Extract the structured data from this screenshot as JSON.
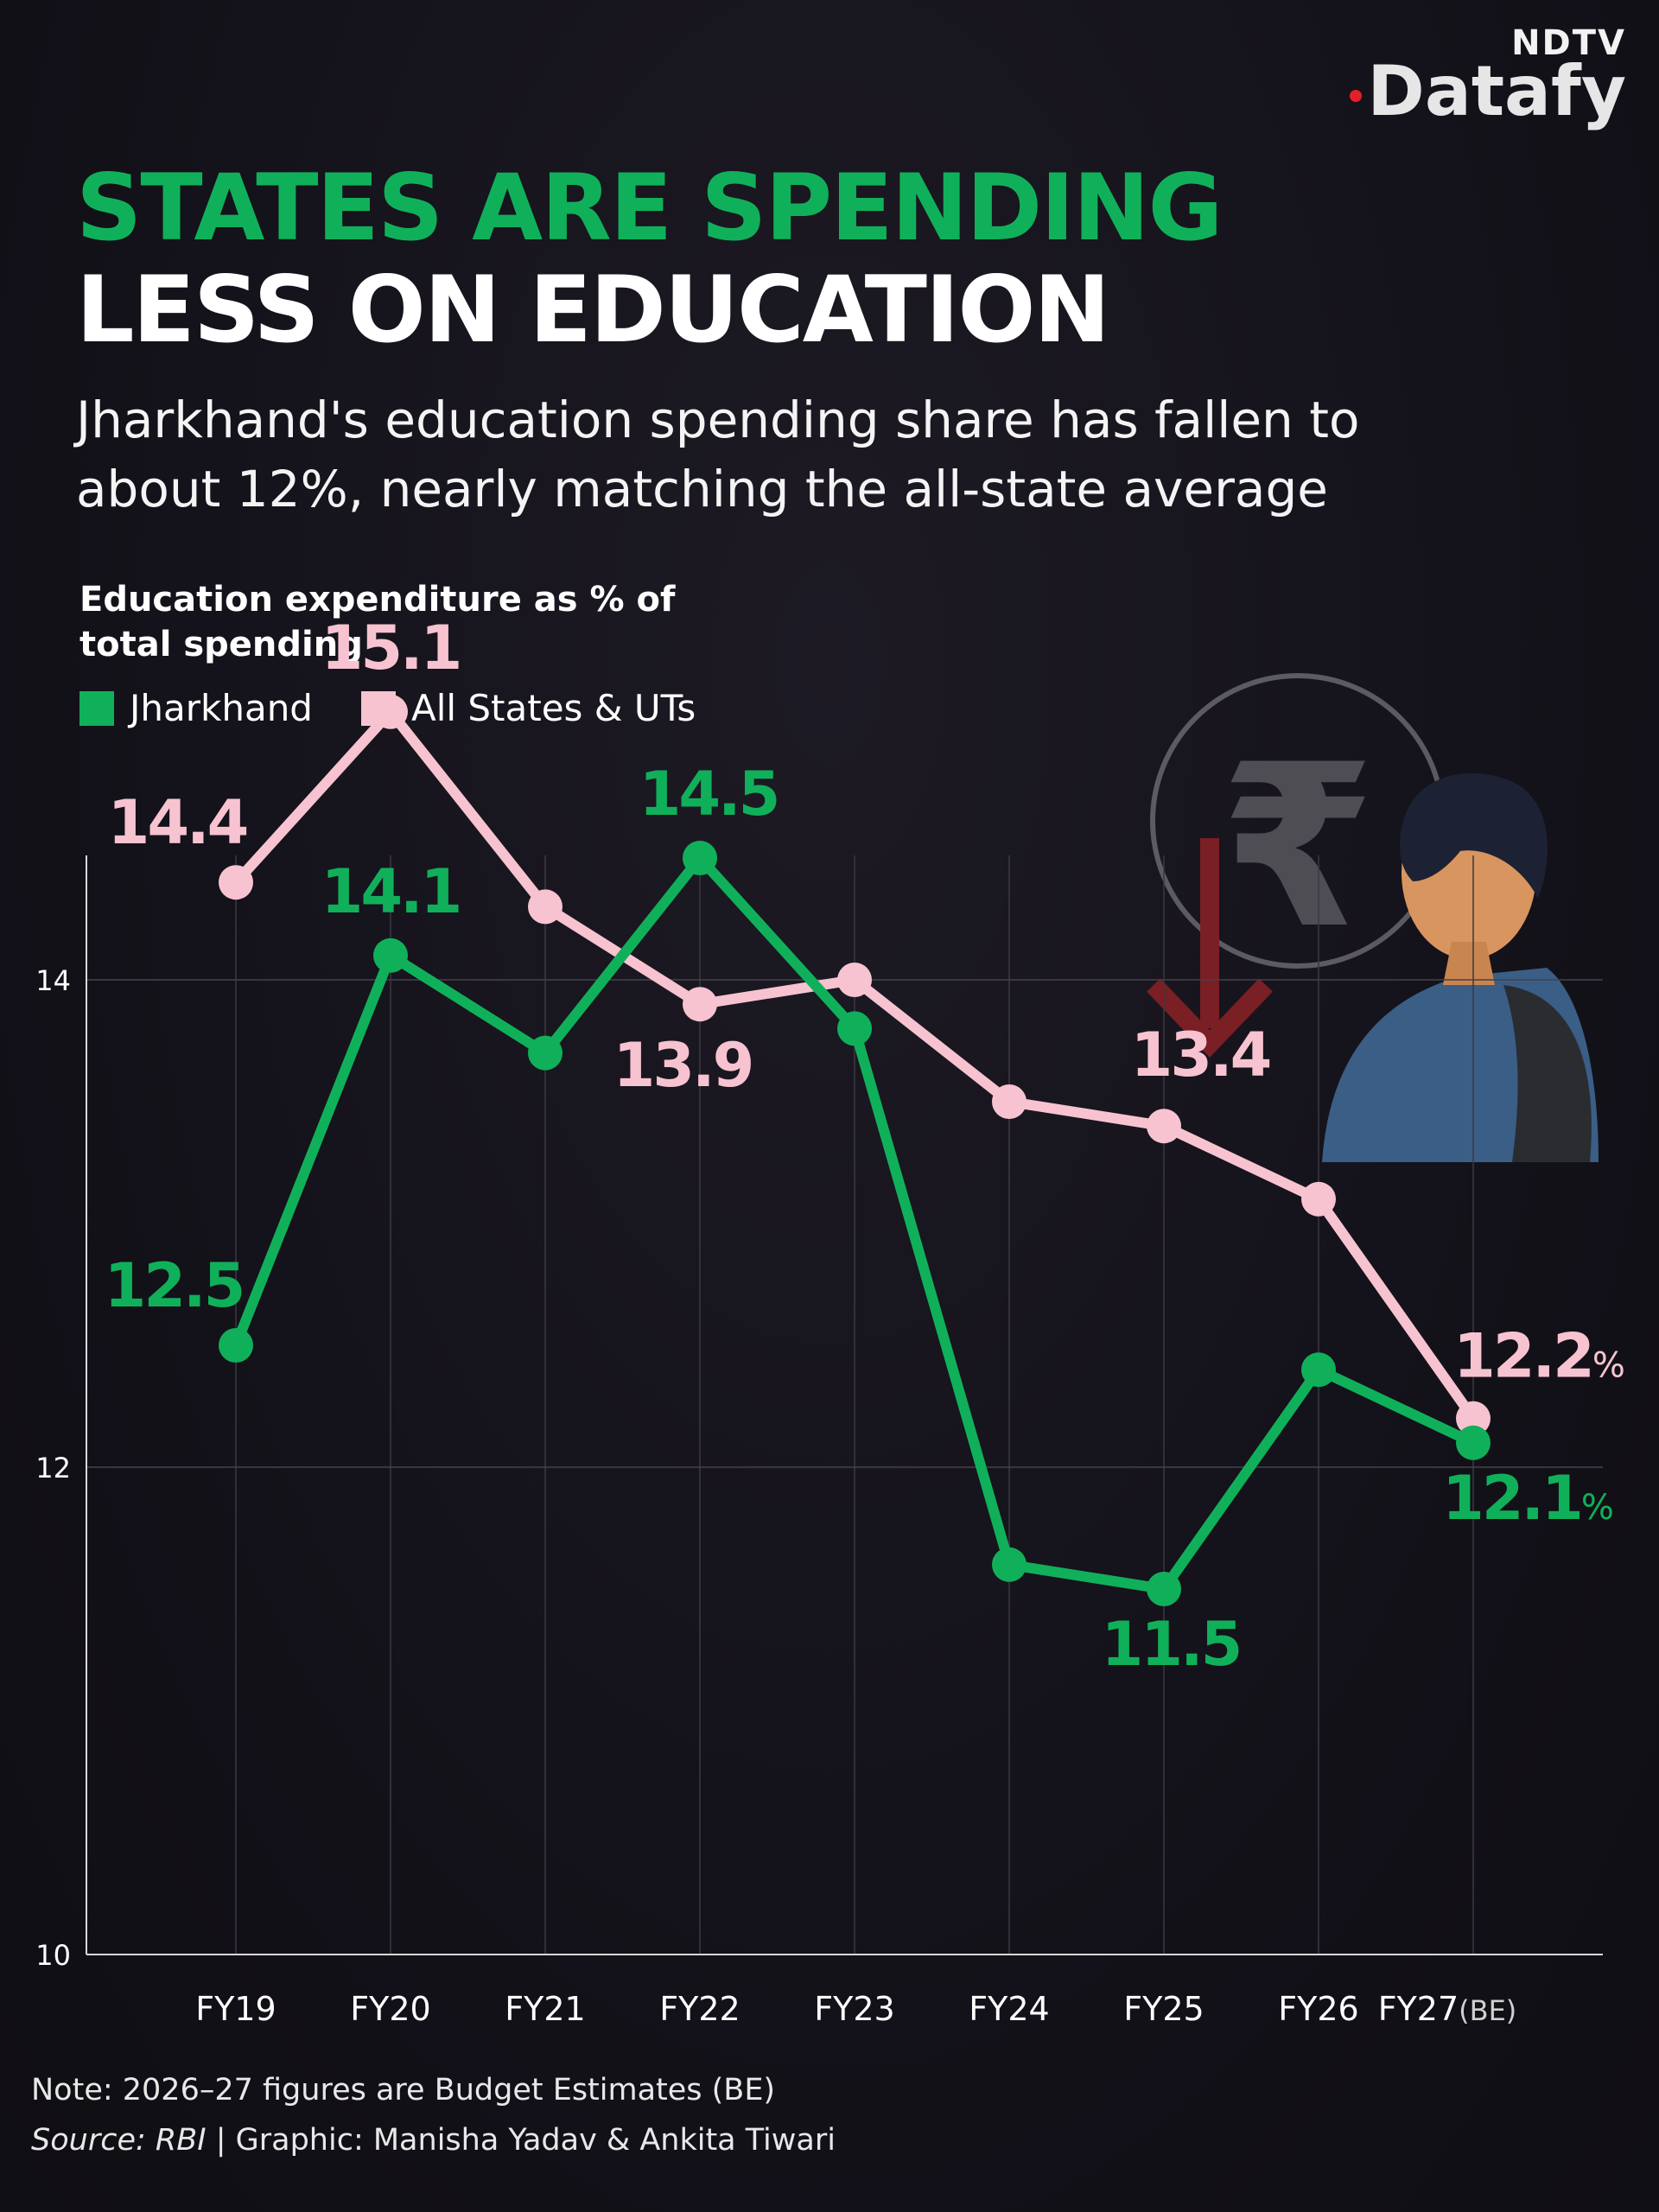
{
  "brand": {
    "top": "NDTV",
    "bottom": "Datafy"
  },
  "title": {
    "line1": "STATES ARE SPENDING",
    "line2": "LESS ON EDUCATION"
  },
  "subtitle": "Jharkhand's education spending share has fallen to about 12%, nearly matching the all-state average",
  "chart_label": "Education expenditure as % of total spending",
  "legend": [
    {
      "name": "Jharkhand",
      "color": "#10b05a"
    },
    {
      "name": "All States & UTs",
      "color": "#f7c3d0"
    }
  ],
  "note": "Note: 2026–27 figures are Budget Estimates (BE)",
  "source": {
    "label": "Source:",
    "name": "RBI",
    "rest": " | Graphic: Manisha Yadav & Ankita Tiwari"
  },
  "illustration": {
    "icon": "rupee-down-student-icon"
  },
  "chart_data": {
    "type": "line",
    "categories": [
      "FY19",
      "FY20",
      "FY21",
      "FY22",
      "FY23",
      "FY24",
      "FY25",
      "FY26",
      "FY27"
    ],
    "category_suffix_last": "(BE)",
    "ylim": [
      10,
      15.5
    ],
    "yticks": [
      10,
      12,
      14
    ],
    "grid": true,
    "series": [
      {
        "name": "Jharkhand",
        "color": "#10b05a",
        "values": [
          12.5,
          14.1,
          13.7,
          14.5,
          13.8,
          11.6,
          11.5,
          12.4,
          12.1
        ],
        "labels": [
          "12.5",
          "14.1",
          "",
          "14.5",
          "",
          "",
          "11.5",
          "",
          "12.1"
        ]
      },
      {
        "name": "All States & UTs",
        "color": "#f7c3d0",
        "values": [
          14.4,
          15.1,
          14.3,
          13.9,
          14.0,
          13.5,
          13.4,
          13.1,
          12.2
        ],
        "labels": [
          "14.4",
          "15.1",
          "",
          "13.9",
          "",
          "",
          "13.4",
          "",
          "12.2"
        ]
      }
    ],
    "last_label_suffix": "%"
  }
}
